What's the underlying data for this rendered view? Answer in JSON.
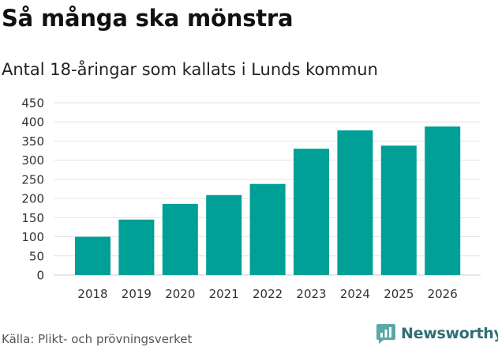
{
  "title": "Så många ska mönstra",
  "chart_data": {
    "type": "bar",
    "title": "Så många ska mönstra",
    "subtitle": "Antal 18-åringar som kallats i Lunds kommun",
    "categories": [
      "2018",
      "2019",
      "2020",
      "2021",
      "2022",
      "2023",
      "2024",
      "2025",
      "2026"
    ],
    "values": [
      100,
      145,
      186,
      209,
      238,
      330,
      378,
      338,
      388
    ],
    "xlabel": "",
    "ylabel": "",
    "ylim": [
      0,
      450
    ],
    "yticks": [
      0,
      50,
      100,
      150,
      200,
      250,
      300,
      350,
      400,
      450
    ],
    "ytick_labels": [
      "0",
      "50",
      "100",
      "150",
      "200",
      "250",
      "300",
      "350",
      "400",
      "450"
    ],
    "grid": true,
    "bar_color": "#00a096"
  },
  "source": "Källa: Plikt- och prövningsverket",
  "brand": {
    "name": "Newsworthy",
    "color": "#2e6f74"
  }
}
